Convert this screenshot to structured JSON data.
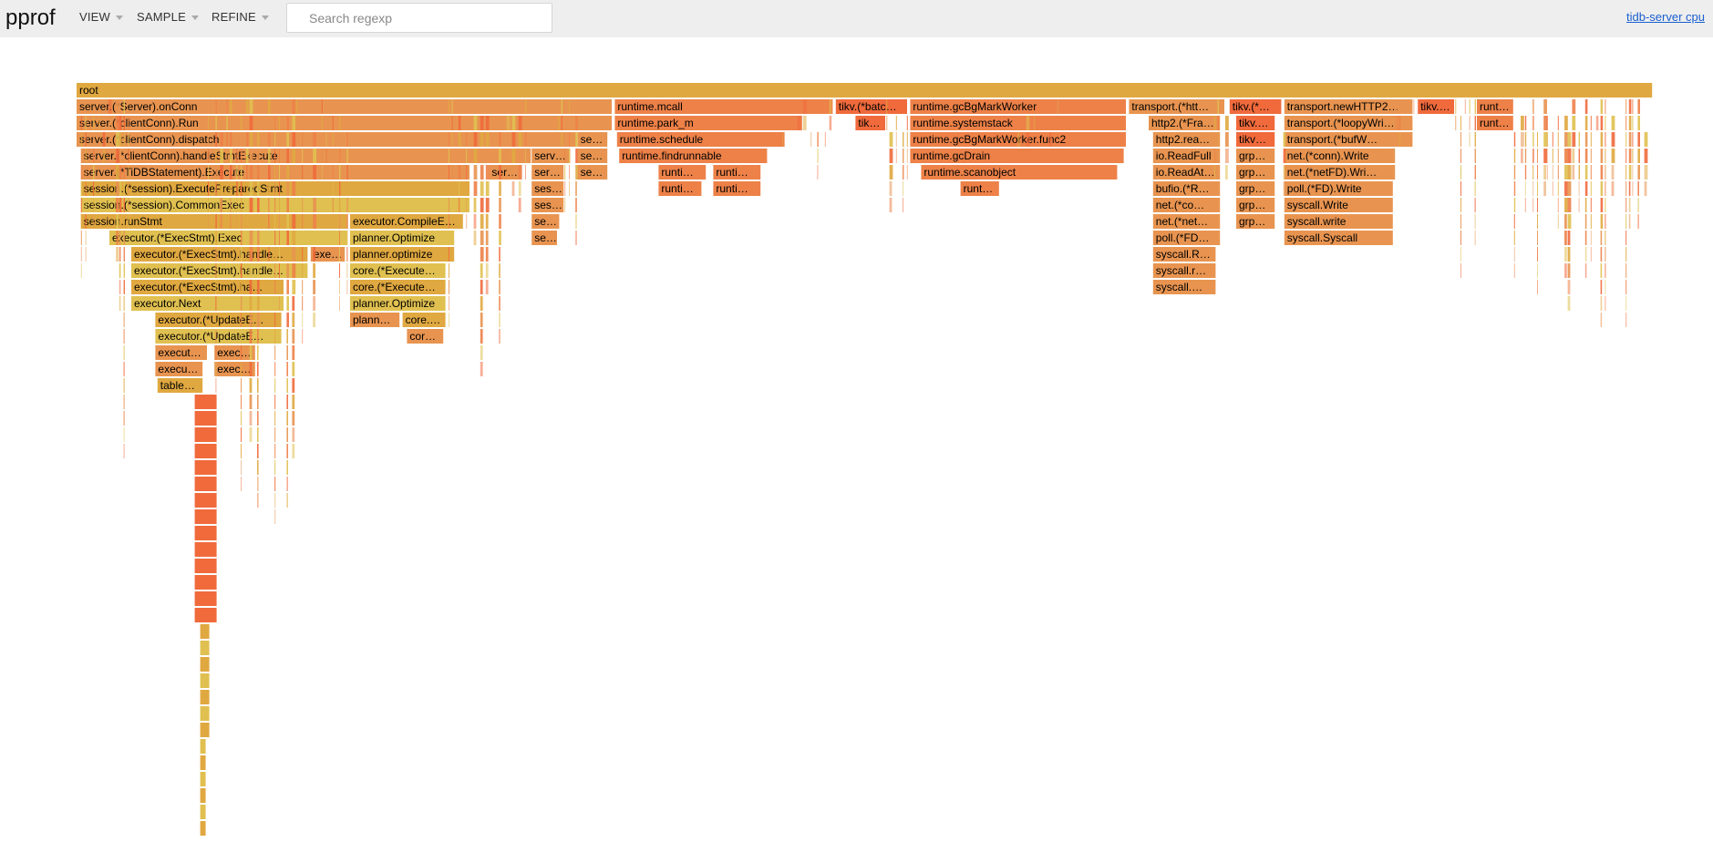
{
  "header": {
    "title": "pprof",
    "menus": [
      "VIEW",
      "SAMPLE",
      "REFINE"
    ],
    "search_placeholder": "Search regexp",
    "profile_name": "tidb-server cpu"
  },
  "colors": {
    "header_bg": "#eeeeee",
    "yellow": "#e0c050",
    "gold": "#e0a840",
    "orange": "#e89450",
    "deep_orange": "#ed8148",
    "red_orange": "#f06a3c",
    "link": "#1a5fd0"
  },
  "flame": {
    "frames": [
      {
        "label": "root",
        "depth": 0,
        "start": 0,
        "width": 1441
      },
      {
        "label": "server.(*Server).onConn",
        "depth": 1,
        "start": 0,
        "width": 490
      },
      {
        "label": "server.(*clientConn).Run",
        "depth": 2,
        "start": 0,
        "width": 490
      },
      {
        "label": "server.(*clientConn).dispatch",
        "depth": 3,
        "start": 0,
        "width": 458
      },
      {
        "label": "server.(*clientConn).handleStmtExecute",
        "depth": 4,
        "start": 4,
        "width": 412
      },
      {
        "label": "server.(*TiDBStatement).Execute",
        "depth": 5,
        "start": 4,
        "width": 356
      },
      {
        "label": "session.(*session).ExecutePreparedStmt",
        "depth": 6,
        "start": 4,
        "width": 356
      },
      {
        "label": "session.(*session).CommonExec",
        "depth": 7,
        "start": 4,
        "width": 356
      },
      {
        "label": "session.runStmt",
        "depth": 8,
        "start": 4,
        "width": 244
      },
      {
        "label": "executor.(*ExecStmt).Exec",
        "depth": 9,
        "start": 30,
        "width": 218
      },
      {
        "label": "executor.(*ExecStmt).handle…",
        "depth": 10,
        "start": 50,
        "width": 162
      },
      {
        "label": "exe…",
        "depth": 10,
        "start": 214,
        "width": 32
      },
      {
        "label": "executor.(*ExecStmt).handle…",
        "depth": 11,
        "start": 50,
        "width": 162
      },
      {
        "label": "executor.(*ExecStmt).ha…",
        "depth": 12,
        "start": 50,
        "width": 140
      },
      {
        "label": "executor.Next",
        "depth": 13,
        "start": 50,
        "width": 140
      },
      {
        "label": "executor.(*UpdateE…",
        "depth": 14,
        "start": 72,
        "width": 116
      },
      {
        "label": "executor.(*UpdateE…",
        "depth": 15,
        "start": 72,
        "width": 116
      },
      {
        "label": "execut…",
        "depth": 16,
        "start": 72,
        "width": 48
      },
      {
        "label": "exec…",
        "depth": 16,
        "start": 126,
        "width": 38
      },
      {
        "label": "execu…",
        "depth": 17,
        "start": 72,
        "width": 44
      },
      {
        "label": "exec…",
        "depth": 17,
        "start": 126,
        "width": 38
      },
      {
        "label": "table…",
        "depth": 18,
        "start": 74,
        "width": 42
      },
      {
        "label": "executor.CompileE…",
        "depth": 8,
        "start": 250,
        "width": 104
      },
      {
        "label": "planner.Optimize",
        "depth": 9,
        "start": 250,
        "width": 96
      },
      {
        "label": "planner.optimize",
        "depth": 10,
        "start": 250,
        "width": 96
      },
      {
        "label": "core.(*Execute…",
        "depth": 11,
        "start": 250,
        "width": 88
      },
      {
        "label": "core.(*Execute…",
        "depth": 12,
        "start": 250,
        "width": 88
      },
      {
        "label": "planner.Optimize",
        "depth": 13,
        "start": 250,
        "width": 88
      },
      {
        "label": "plann…",
        "depth": 14,
        "start": 250,
        "width": 46
      },
      {
        "label": "core.…",
        "depth": 14,
        "start": 298,
        "width": 40
      },
      {
        "label": "cor…",
        "depth": 15,
        "start": 302,
        "width": 34
      },
      {
        "label": "ser…",
        "depth": 5,
        "start": 377,
        "width": 30
      },
      {
        "label": "serv…",
        "depth": 4,
        "start": 416,
        "width": 36
      },
      {
        "label": "ser…",
        "depth": 5,
        "start": 416,
        "width": 30
      },
      {
        "label": "ses…",
        "depth": 6,
        "start": 416,
        "width": 30
      },
      {
        "label": "ses…",
        "depth": 7,
        "start": 416,
        "width": 30
      },
      {
        "label": "se…",
        "depth": 8,
        "start": 416,
        "width": 26
      },
      {
        "label": "se…",
        "depth": 9,
        "start": 416,
        "width": 24
      },
      {
        "label": "se…",
        "depth": 3,
        "start": 458,
        "width": 28
      },
      {
        "label": "se…",
        "depth": 4,
        "start": 458,
        "width": 28
      },
      {
        "label": "se…",
        "depth": 5,
        "start": 458,
        "width": 28
      },
      {
        "label": "runtime.mcall",
        "depth": 1,
        "start": 492,
        "width": 200
      },
      {
        "label": "runtime.park_m",
        "depth": 2,
        "start": 492,
        "width": 172
      },
      {
        "label": "runtime.schedule",
        "depth": 3,
        "start": 494,
        "width": 154
      },
      {
        "label": "runtime.findrunnable",
        "depth": 4,
        "start": 496,
        "width": 136
      },
      {
        "label": "runti…",
        "depth": 5,
        "start": 532,
        "width": 44
      },
      {
        "label": "runti…",
        "depth": 5,
        "start": 582,
        "width": 44
      },
      {
        "label": "runti…",
        "depth": 6,
        "start": 532,
        "width": 40
      },
      {
        "label": "runti…",
        "depth": 6,
        "start": 582,
        "width": 44
      },
      {
        "label": "tikv.(*batc…",
        "depth": 1,
        "start": 694,
        "width": 66
      },
      {
        "label": "tik…",
        "depth": 2,
        "start": 712,
        "width": 28
      },
      {
        "label": "runtime.gcBgMarkWorker",
        "depth": 1,
        "start": 762,
        "width": 198
      },
      {
        "label": "runtime.systemstack",
        "depth": 2,
        "start": 762,
        "width": 198
      },
      {
        "label": "runtime.gcBgMarkWorker.func2",
        "depth": 3,
        "start": 762,
        "width": 198
      },
      {
        "label": "runtime.gcDrain",
        "depth": 4,
        "start": 762,
        "width": 196
      },
      {
        "label": "runtime.scanobject",
        "depth": 5,
        "start": 772,
        "width": 180
      },
      {
        "label": "runt…",
        "depth": 6,
        "start": 808,
        "width": 36
      },
      {
        "label": "transport.(*htt…",
        "depth": 1,
        "start": 962,
        "width": 88
      },
      {
        "label": "http2.(*Fra…",
        "depth": 2,
        "start": 980,
        "width": 66
      },
      {
        "label": "http2.rea…",
        "depth": 3,
        "start": 984,
        "width": 62
      },
      {
        "label": "io.ReadFull",
        "depth": 4,
        "start": 984,
        "width": 62
      },
      {
        "label": "io.ReadAt…",
        "depth": 5,
        "start": 984,
        "width": 62
      },
      {
        "label": "bufio.(*R…",
        "depth": 6,
        "start": 984,
        "width": 62
      },
      {
        "label": "net.(*co…",
        "depth": 7,
        "start": 984,
        "width": 62
      },
      {
        "label": "net.(*net…",
        "depth": 8,
        "start": 984,
        "width": 62
      },
      {
        "label": "poll.(*FD…",
        "depth": 9,
        "start": 984,
        "width": 62
      },
      {
        "label": "syscall.R…",
        "depth": 10,
        "start": 984,
        "width": 58
      },
      {
        "label": "syscall.r…",
        "depth": 11,
        "start": 984,
        "width": 58
      },
      {
        "label": "syscall.…",
        "depth": 12,
        "start": 984,
        "width": 58
      },
      {
        "label": "tikv.(*…",
        "depth": 1,
        "start": 1054,
        "width": 48
      },
      {
        "label": "tikv.…",
        "depth": 2,
        "start": 1060,
        "width": 36
      },
      {
        "label": "tikv…",
        "depth": 3,
        "start": 1060,
        "width": 36
      },
      {
        "label": "grp…",
        "depth": 4,
        "start": 1060,
        "width": 36
      },
      {
        "label": "grp…",
        "depth": 5,
        "start": 1060,
        "width": 36
      },
      {
        "label": "grp…",
        "depth": 6,
        "start": 1060,
        "width": 36
      },
      {
        "label": "grp…",
        "depth": 7,
        "start": 1060,
        "width": 36
      },
      {
        "label": "grp…",
        "depth": 8,
        "start": 1060,
        "width": 36
      },
      {
        "label": "transport.newHTTP2…",
        "depth": 1,
        "start": 1104,
        "width": 118
      },
      {
        "label": "transport.(*loopyWri…",
        "depth": 2,
        "start": 1104,
        "width": 118
      },
      {
        "label": "transport.(*bufW…",
        "depth": 3,
        "start": 1104,
        "width": 118
      },
      {
        "label": "net.(*conn).Write",
        "depth": 4,
        "start": 1104,
        "width": 102
      },
      {
        "label": "net.(*netFD).Wri…",
        "depth": 5,
        "start": 1104,
        "width": 102
      },
      {
        "label": "poll.(*FD).Write",
        "depth": 6,
        "start": 1104,
        "width": 100
      },
      {
        "label": "syscall.Write",
        "depth": 7,
        "start": 1104,
        "width": 100
      },
      {
        "label": "syscall.write",
        "depth": 8,
        "start": 1104,
        "width": 100
      },
      {
        "label": "syscall.Syscall",
        "depth": 9,
        "start": 1104,
        "width": 100
      },
      {
        "label": "tikv.…",
        "depth": 1,
        "start": 1226,
        "width": 34
      },
      {
        "label": "runt…",
        "depth": 1,
        "start": 1280,
        "width": 34
      },
      {
        "label": "runt…",
        "depth": 2,
        "start": 1280,
        "width": 34
      }
    ]
  }
}
